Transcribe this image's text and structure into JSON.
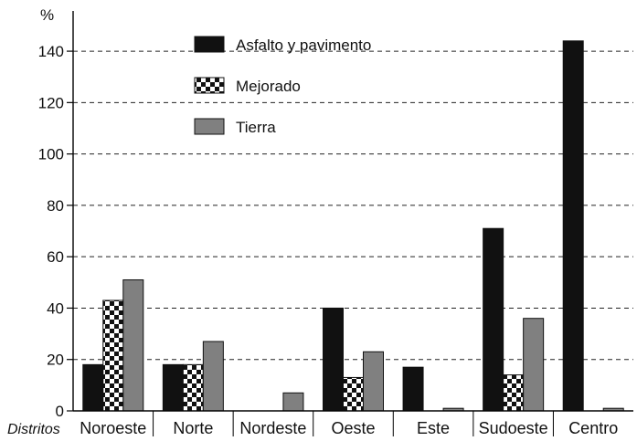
{
  "chart_data": {
    "type": "bar",
    "unit_label": "%",
    "x_title": "Distritos",
    "categories": [
      "Noroeste",
      "Norte",
      "Nordeste",
      "Oeste",
      "Este",
      "Sudoeste",
      "Centro"
    ],
    "series": [
      {
        "name": "Asfalto y pavimento",
        "values": [
          18,
          18,
          0,
          40,
          17,
          71,
          144
        ],
        "color": "#111111",
        "pattern": "solid"
      },
      {
        "name": "Mejorado",
        "values": [
          43,
          18,
          0,
          13,
          0,
          14,
          0
        ],
        "color": "#111111",
        "pattern": "checker"
      },
      {
        "name": "Tierra",
        "values": [
          51,
          27,
          7,
          23,
          1,
          36,
          1
        ],
        "color": "#808080",
        "pattern": "solid"
      }
    ],
    "y_ticks": [
      0,
      20,
      40,
      60,
      80,
      100,
      120,
      140
    ],
    "ylim": [
      0,
      145
    ],
    "grid": "dashed-horizontal",
    "legend_position": "top-center"
  }
}
